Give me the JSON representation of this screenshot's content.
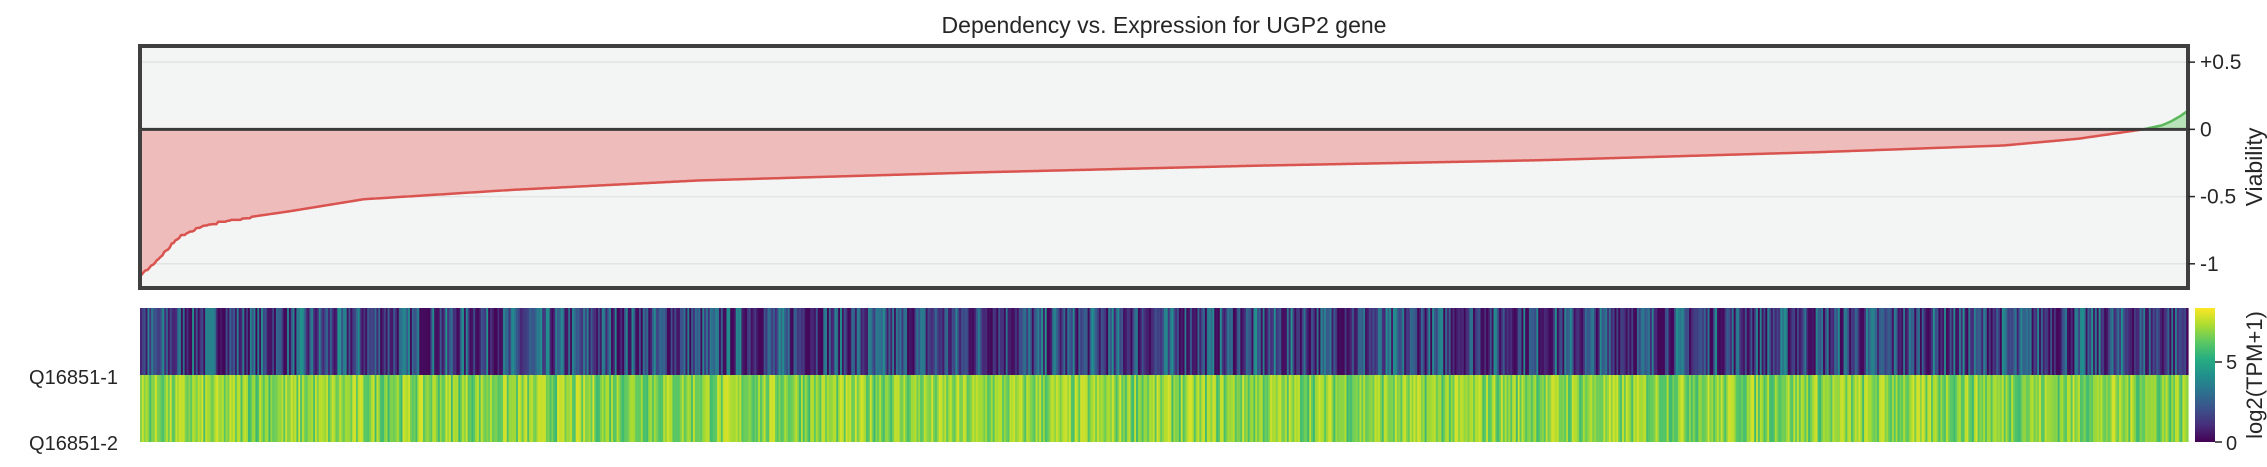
{
  "chart_data": [
    {
      "type": "area",
      "title": "Dependency vs. Expression for UGP2 gene",
      "ylabel": "Viability",
      "xlabel": "",
      "ylim": [
        -1.18,
        0.62
      ],
      "yticks": [
        0.5,
        0,
        -0.5,
        -1
      ],
      "ytick_labels": [
        "+0.5",
        "0",
        "-0.5",
        "-1"
      ],
      "grid": true,
      "n_samples": 1100,
      "colors": {
        "negative": "#d9534f",
        "negative_fill": "#efbcbc",
        "positive": "#5cb85c",
        "positive_fill": "#b9e3b9",
        "zero_line": "#3a3a3a",
        "background": "#f3f5f4"
      },
      "series": [
        {
          "x": [
            0,
            5,
            10,
            15,
            20,
            25,
            30,
            35,
            40,
            55,
            80,
            120,
            200,
            300,
            450,
            600,
            750,
            900,
            1000,
            1040,
            1060,
            1075,
            1085,
            1090,
            1095,
            1099
          ],
          "y": [
            -1.08,
            -1.02,
            -0.95,
            -0.88,
            -0.8,
            -0.76,
            -0.73,
            -0.71,
            -0.69,
            -0.66,
            -0.61,
            -0.52,
            -0.45,
            -0.38,
            -0.32,
            -0.27,
            -0.23,
            -0.17,
            -0.12,
            -0.07,
            -0.03,
            0.0,
            0.03,
            0.06,
            0.1,
            0.14
          ]
        }
      ]
    },
    {
      "type": "heatmap",
      "rows": [
        "Q16851-1",
        "Q16851-2"
      ],
      "colorbar_label": "log2(TPM+1)",
      "colorbar_ticks": [
        "0",
        "5"
      ],
      "colorbar_range": [
        0,
        7
      ],
      "colormap": "viridis",
      "row_value_ranges": [
        [
          0.1,
          3.6
        ],
        [
          3.6,
          6.6
        ]
      ],
      "n_columns": 1100
    }
  ]
}
